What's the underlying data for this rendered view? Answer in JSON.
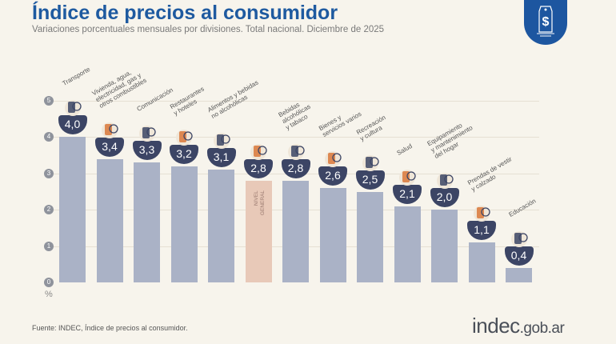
{
  "header": {
    "title": "Índice de precios al consumidor",
    "subtitle": "Variaciones porcentuales mensuales por divisiones. Total nacional. Diciembre de 2025"
  },
  "footer": {
    "source": "Fuente: INDEC, Índice de precios al consumidor.",
    "brand_main": "indec",
    "brand_suffix": ".gob.ar"
  },
  "colors": {
    "bar": "#aab2c6",
    "highlight": "#e8c9b8",
    "badge": "#3c4565",
    "title": "#1e5aa0",
    "icon": "#d9773a"
  },
  "chart_data": {
    "type": "bar",
    "title": "Índice de precios al consumidor",
    "ylabel": "%",
    "ylim": [
      0,
      5
    ],
    "yticks": [
      "0",
      "1",
      "2",
      "3",
      "4",
      "5"
    ],
    "highlight_label": "NIVEL\nGENERAL",
    "categories": [
      "Transporte",
      "Vivienda, agua,\nelectricidad, gas y\notros combustibles",
      "Comunicación",
      "Restaurantes\ny hoteles",
      "Alimentos y bebidas\nno alcohólicas",
      "Nivel general",
      "Bebidas\nalcohólicas\ny tabaco",
      "Bienes y\nservicios varios",
      "Recreación\ny cultura",
      "Salud",
      "Equipamiento\ny mantenimiento\ndel hogar",
      "Prendas de vestir\ny calzado",
      "Educación"
    ],
    "values": [
      4.0,
      3.4,
      3.3,
      3.2,
      3.1,
      2.8,
      2.8,
      2.6,
      2.5,
      2.1,
      2.0,
      1.1,
      0.4
    ],
    "value_labels": [
      "4,0",
      "3,4",
      "3,3",
      "3,2",
      "3,1",
      "2,8",
      "2,8",
      "2,6",
      "2,5",
      "2,1",
      "2,0",
      "1,1",
      "0,4"
    ],
    "highlight_index": 5
  }
}
